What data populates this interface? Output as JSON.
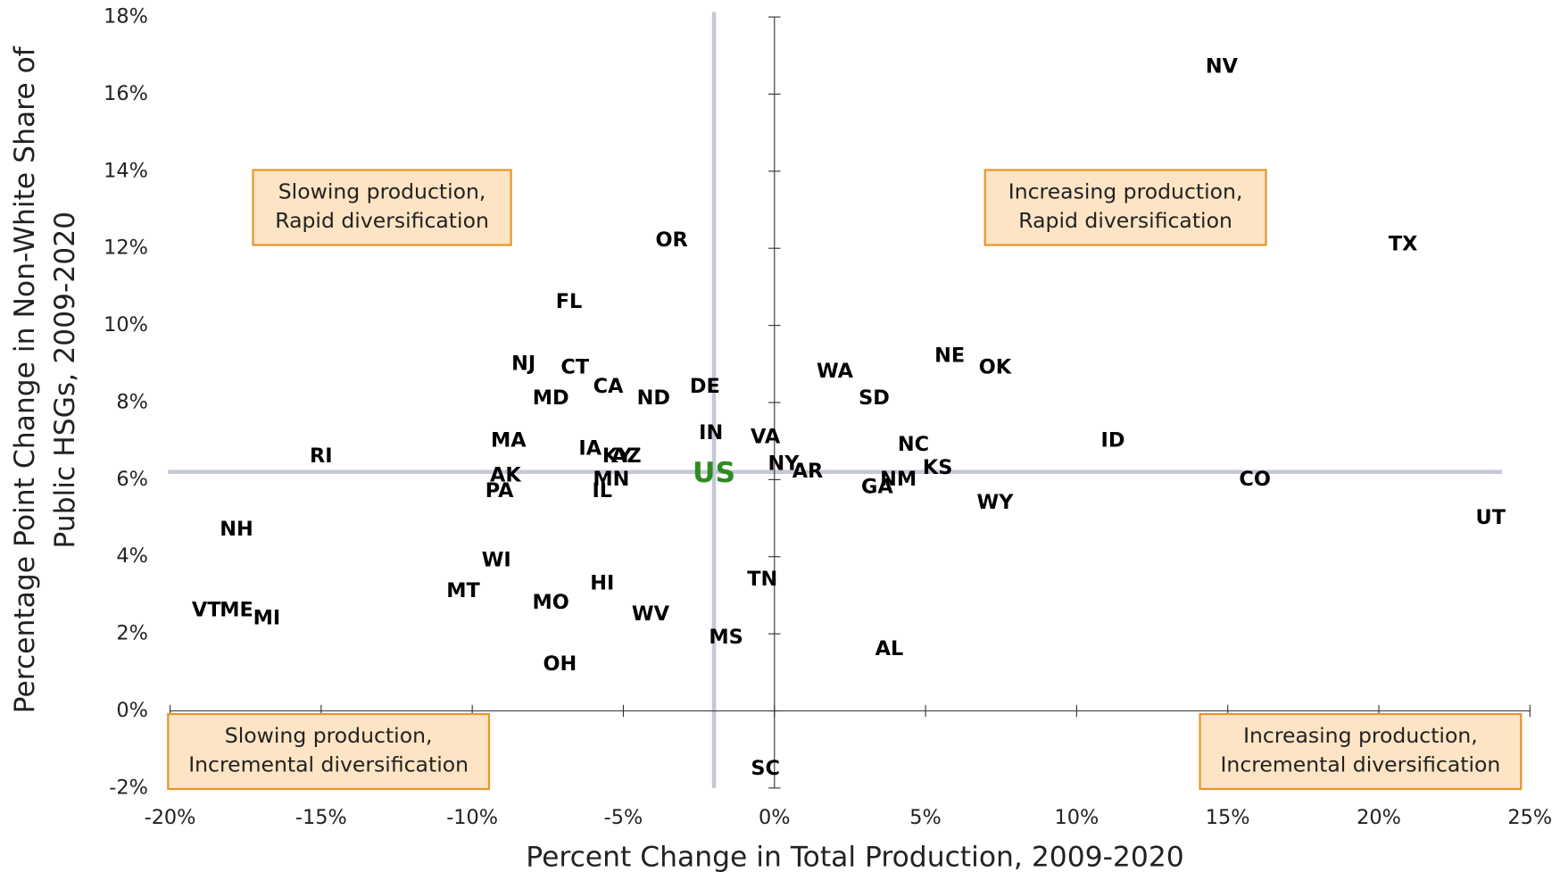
{
  "chart_data": {
    "type": "scatter",
    "xlabel": "Percent Change in Total Production, 2009-2020",
    "ylabel": [
      "Percentage Point Change in Non-White Share of",
      "Public HSGs, 2009-2020"
    ],
    "xlim": [
      -20,
      25
    ],
    "ylim": [
      -2,
      18
    ],
    "xticks": [
      {
        "value": -20,
        "label": "-20%"
      },
      {
        "value": -15,
        "label": "-15%"
      },
      {
        "value": -10,
        "label": "-10%"
      },
      {
        "value": -5,
        "label": "-5%"
      },
      {
        "value": 0,
        "label": "0%"
      },
      {
        "value": 5,
        "label": "5%"
      },
      {
        "value": 10,
        "label": "10%"
      },
      {
        "value": 15,
        "label": "15%"
      },
      {
        "value": 20,
        "label": "20%"
      },
      {
        "value": 25,
        "label": "25%"
      }
    ],
    "yticks": [
      {
        "value": -2,
        "label": "-2%"
      },
      {
        "value": 0,
        "label": "0%"
      },
      {
        "value": 2,
        "label": "2%"
      },
      {
        "value": 4,
        "label": "4%"
      },
      {
        "value": 6,
        "label": "6%"
      },
      {
        "value": 8,
        "label": "8%"
      },
      {
        "value": 10,
        "label": "10%"
      },
      {
        "value": 12,
        "label": "12%"
      },
      {
        "value": 14,
        "label": "14%"
      },
      {
        "value": 16,
        "label": "16%"
      },
      {
        "value": 18,
        "label": "18%"
      }
    ],
    "color": "#000000",
    "points": [
      {
        "label": "NV",
        "x": 14.8,
        "y": 16.7
      },
      {
        "label": "TX",
        "x": 20.8,
        "y": 12.1
      },
      {
        "label": "OR",
        "x": -3.4,
        "y": 12.2
      },
      {
        "label": "FL",
        "x": -6.8,
        "y": 10.6
      },
      {
        "label": "NJ",
        "x": -8.3,
        "y": 9.0
      },
      {
        "label": "CT",
        "x": -6.6,
        "y": 8.9
      },
      {
        "label": "CA",
        "x": -5.5,
        "y": 8.4
      },
      {
        "label": "DE",
        "x": -2.3,
        "y": 8.4
      },
      {
        "label": "MD",
        "x": -7.4,
        "y": 8.1
      },
      {
        "label": "ND",
        "x": -4.0,
        "y": 8.1
      },
      {
        "label": "WA",
        "x": 2.0,
        "y": 8.8
      },
      {
        "label": "NE",
        "x": 5.8,
        "y": 9.2
      },
      {
        "label": "OK",
        "x": 7.3,
        "y": 8.9
      },
      {
        "label": "SD",
        "x": 3.3,
        "y": 8.1
      },
      {
        "label": "IN",
        "x": -2.1,
        "y": 7.2
      },
      {
        "label": "VA",
        "x": -0.3,
        "y": 7.1
      },
      {
        "label": "NC",
        "x": 4.6,
        "y": 6.9
      },
      {
        "label": "ID",
        "x": 11.2,
        "y": 7.0
      },
      {
        "label": "MA",
        "x": -8.8,
        "y": 7.0
      },
      {
        "label": "IA",
        "x": -6.1,
        "y": 6.8
      },
      {
        "label": "KY",
        "x": -5.2,
        "y": 6.6
      },
      {
        "label": "AZ",
        "x": -4.9,
        "y": 6.6
      },
      {
        "label": "RI",
        "x": -15.0,
        "y": 6.6
      },
      {
        "label": "NY",
        "x": 0.3,
        "y": 6.4
      },
      {
        "label": "KS",
        "x": 5.4,
        "y": 6.3
      },
      {
        "label": "AR",
        "x": 1.1,
        "y": 6.2
      },
      {
        "label": "AK",
        "x": -8.9,
        "y": 6.1
      },
      {
        "label": "NM",
        "x": 4.1,
        "y": 6.0
      },
      {
        "label": "CO",
        "x": 15.9,
        "y": 6.0
      },
      {
        "label": "MN",
        "x": -5.4,
        "y": 6.0
      },
      {
        "label": "GA",
        "x": 3.4,
        "y": 5.8
      },
      {
        "label": "IL",
        "x": -5.7,
        "y": 5.7
      },
      {
        "label": "PA",
        "x": -9.1,
        "y": 5.7
      },
      {
        "label": "WY",
        "x": 7.3,
        "y": 5.4
      },
      {
        "label": "UT",
        "x": 23.7,
        "y": 5.0
      },
      {
        "label": "NH",
        "x": -17.8,
        "y": 4.7
      },
      {
        "label": "WI",
        "x": -9.2,
        "y": 3.9
      },
      {
        "label": "HI",
        "x": -5.7,
        "y": 3.3
      },
      {
        "label": "TN",
        "x": -0.4,
        "y": 3.4
      },
      {
        "label": "MT",
        "x": -10.3,
        "y": 3.1
      },
      {
        "label": "MO",
        "x": -7.4,
        "y": 2.8
      },
      {
        "label": "VT",
        "x": -18.8,
        "y": 2.6
      },
      {
        "label": "ME",
        "x": -17.8,
        "y": 2.6
      },
      {
        "label": "MI",
        "x": -16.8,
        "y": 2.4
      },
      {
        "label": "WV",
        "x": -4.1,
        "y": 2.5
      },
      {
        "label": "MS",
        "x": -1.6,
        "y": 1.9
      },
      {
        "label": "AL",
        "x": 3.8,
        "y": 1.6
      },
      {
        "label": "OH",
        "x": -7.1,
        "y": 1.2
      },
      {
        "label": "SC",
        "x": -0.3,
        "y": -1.5
      }
    ],
    "reference": {
      "label": "US",
      "x": -2.0,
      "y": 6.2,
      "color": "#2e8b22",
      "line_color": "#c3c8d6"
    },
    "annotations": [
      [
        "Slowing production,",
        "Rapid diversification"
      ],
      [
        "Increasing production,",
        "Rapid diversification"
      ],
      [
        "Slowing production,",
        "Incremental diversification"
      ],
      [
        "Increasing production,",
        "Incremental diversification"
      ]
    ],
    "annotation_style": {
      "fill": "#fde4c4",
      "stroke": "#e8952e"
    }
  }
}
